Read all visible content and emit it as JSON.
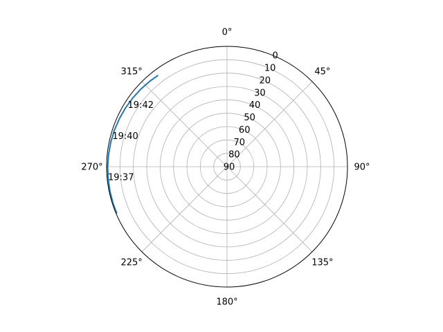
{
  "chart_data": {
    "type": "line",
    "projection": "polar",
    "theta_zero_location": "N",
    "theta_direction": "clockwise",
    "angle_ticks": [
      "0°",
      "45°",
      "90°",
      "135°",
      "180°",
      "225°",
      "270°",
      "315°"
    ],
    "angle_tick_values_deg": [
      0,
      45,
      90,
      135,
      180,
      225,
      270,
      315
    ],
    "radial_ticks": [
      "0",
      "10",
      "20",
      "30",
      "40",
      "50",
      "60",
      "70",
      "80",
      "90"
    ],
    "radial_tick_values": [
      0,
      10,
      20,
      30,
      40,
      50,
      60,
      70,
      80,
      90
    ],
    "radial_axis_inverted": true,
    "rlim": [
      0,
      90
    ],
    "grid": true,
    "series": [
      {
        "color": "#1f77b4",
        "theta_deg": [
          247,
          252,
          258,
          264,
          270,
          276,
          282,
          288,
          294,
          300,
          306,
          312,
          318,
          323
        ],
        "elevation": [
          0.5,
          0.5,
          0.6,
          0.7,
          0.8,
          1.0,
          1.2,
          1.5,
          1.9,
          2.3,
          2.8,
          3.3,
          3.9,
          4.4
        ]
      }
    ],
    "annotations": [
      {
        "text": "19:37",
        "theta_deg": 265,
        "elevation": 0.7
      },
      {
        "text": "19:40",
        "theta_deg": 285,
        "elevation": 1.3
      },
      {
        "text": "19:42",
        "theta_deg": 302,
        "elevation": 2.5
      }
    ]
  }
}
